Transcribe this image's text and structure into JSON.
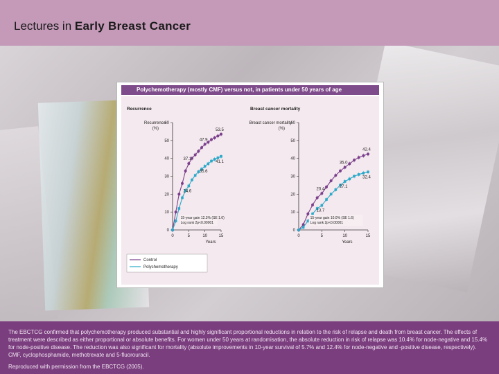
{
  "header": {
    "prefix": "Lectures in",
    "title": "Early Breast Cancer"
  },
  "figure": {
    "banner": "Polychemotherapy (mostly CMF) versus not, in patients under 50 years of age"
  },
  "colors": {
    "control": "#7b3f8c",
    "poly": "#2aa9c9"
  },
  "chart_data": [
    {
      "type": "line",
      "title": "Recurrence",
      "ylabel": "Recurrence (%)",
      "xlabel": "Years",
      "xlim": [
        0,
        15
      ],
      "ylim": [
        0,
        60
      ],
      "xticks": [
        "0",
        "5",
        "10",
        "15"
      ],
      "yticks": [
        "0",
        "10",
        "20",
        "30",
        "40",
        "50",
        "60"
      ],
      "series": [
        {
          "name": "Control",
          "x": [
            0,
            1,
            2,
            3,
            4,
            5,
            6,
            7,
            8,
            9,
            10,
            11,
            12,
            13,
            14,
            15
          ],
          "values": [
            0,
            10,
            20,
            26,
            33,
            37.1,
            40,
            42,
            44,
            46,
            47.9,
            49,
            50.5,
            51.5,
            52.5,
            53.5
          ]
        },
        {
          "name": "Polychemotherapy",
          "x": [
            0,
            1,
            2,
            3,
            4,
            5,
            6,
            7,
            8,
            9,
            10,
            11,
            12,
            13,
            14,
            15
          ],
          "values": [
            0,
            5,
            12,
            18,
            22,
            24.6,
            28,
            30.5,
            32.5,
            34,
            35.6,
            37,
            38.5,
            39.5,
            40.3,
            41.1
          ]
        }
      ],
      "data_labels": [
        {
          "x": 5,
          "y": 37.1,
          "text": "37.1"
        },
        {
          "x": 10,
          "y": 47.9,
          "text": "47.9"
        },
        {
          "x": 15,
          "y": 53.5,
          "text": "53.5"
        },
        {
          "x": 5,
          "y": 24.6,
          "text": "24.6"
        },
        {
          "x": 10,
          "y": 35.6,
          "text": "35.6"
        },
        {
          "x": 15,
          "y": 41.1,
          "text": "41.1"
        }
      ],
      "gain_text": "15-year gain 12.3% (SE 1.6)",
      "logrank_text": "Log rank 2p<0.00001"
    },
    {
      "type": "line",
      "title": "Breast cancer mortality",
      "ylabel": "Breast cancer mortality (%)",
      "xlabel": "Years",
      "xlim": [
        0,
        15
      ],
      "ylim": [
        0,
        60
      ],
      "xticks": [
        "0",
        "5",
        "10",
        "15"
      ],
      "yticks": [
        "0",
        "10",
        "20",
        "30",
        "40",
        "50",
        "60"
      ],
      "series": [
        {
          "name": "Control",
          "x": [
            0,
            1,
            2,
            3,
            4,
            5,
            6,
            7,
            8,
            9,
            10,
            11,
            12,
            13,
            14,
            15
          ],
          "values": [
            0,
            3,
            9,
            14,
            18,
            20.4,
            24,
            27.5,
            30.5,
            33,
            35.0,
            37,
            39,
            40.5,
            41.5,
            42.4
          ]
        },
        {
          "name": "Polychemotherapy",
          "x": [
            0,
            1,
            2,
            3,
            4,
            5,
            6,
            7,
            8,
            9,
            10,
            11,
            12,
            13,
            14,
            15
          ],
          "values": [
            0,
            1.5,
            5,
            9,
            12,
            13.7,
            17,
            20,
            22.5,
            25,
            27.1,
            28.5,
            30,
            31,
            31.8,
            32.4
          ]
        }
      ],
      "data_labels": [
        {
          "x": 5,
          "y": 20.4,
          "text": "20.4"
        },
        {
          "x": 10,
          "y": 35.0,
          "text": "35.0"
        },
        {
          "x": 15,
          "y": 42.4,
          "text": "42.4"
        },
        {
          "x": 5,
          "y": 13.7,
          "text": "13.7"
        },
        {
          "x": 10,
          "y": 27.1,
          "text": "27.1"
        },
        {
          "x": 15,
          "y": 32.4,
          "text": "32.4"
        }
      ],
      "gain_text": "15-year gain 10.0% (SE 1.6)",
      "logrank_text": "Log rank 2p<0.00001"
    }
  ],
  "legend": [
    "Control",
    "Polychemotherapy"
  ],
  "footer": {
    "caption": "The EBCTCG confirmed that polychemotherapy produced substantial and highly significant proportional reductions in relation to the risk of relapse and death from breast cancer. The effects of treatment were described as either proportional or absolute benefits. For women under 50 years at randomisation, the absolute reduction in risk of relapse was 10.4% for node-negative and 15.4% for node-positive disease. The reduction was also significant for mortality (absolute improvements in 10-year survival of 5.7% and 12.4% for node-negative and -positive disease, respectively). CMF, cyclophosphamide, methotrexate and 5-fluorouracil.",
    "credit": "Reproduced with permission from the EBCTCG (2005)."
  }
}
